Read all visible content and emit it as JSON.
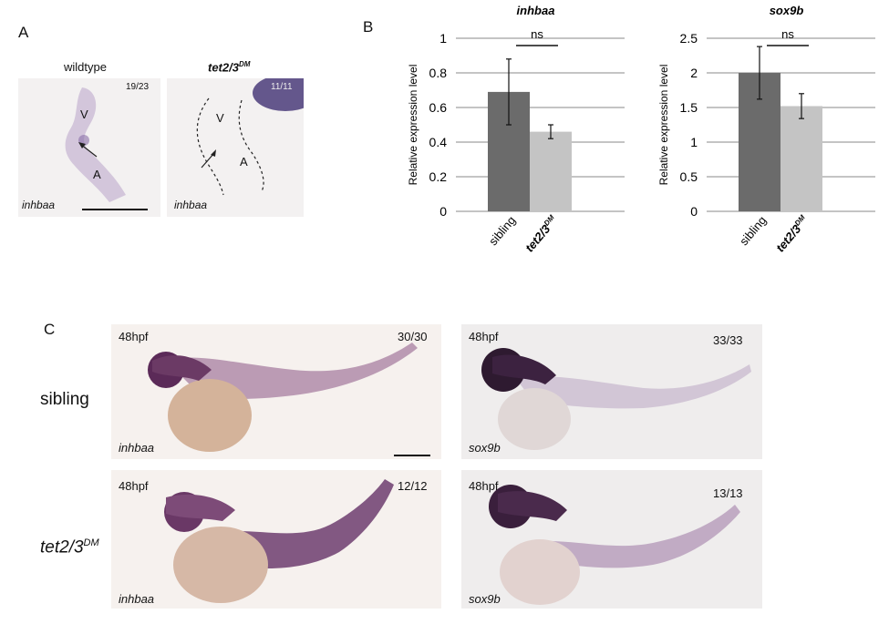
{
  "panel_a": {
    "letter": "A",
    "left_title": "wildtype",
    "right_title_main": "tet2/3",
    "right_title_sup": "DM",
    "left_count": "19/23",
    "right_count": "11/11",
    "left_gene": "inhbaa",
    "right_gene": "inhbaa",
    "label_v": "V",
    "label_a": "A"
  },
  "panel_b": {
    "letter": "B"
  },
  "panel_c": {
    "letter": "C",
    "row1_label": "sibling",
    "row2_label_main": "tet2/3",
    "row2_label_sup": "DM",
    "stage": "48hpf",
    "images": [
      {
        "count": "30/30",
        "gene": "inhbaa"
      },
      {
        "count": "33/33",
        "gene": "sox9b"
      },
      {
        "count": "12/12",
        "gene": "inhbaa"
      },
      {
        "count": "13/13",
        "gene": "sox9b"
      }
    ]
  },
  "chart_data": [
    {
      "type": "bar",
      "title": "inhbaa",
      "ylabel": "Relative expression level",
      "categories": [
        "sibling",
        "tet2/3DM"
      ],
      "values": [
        0.69,
        0.46
      ],
      "errors": [
        0.19,
        0.04
      ],
      "ylim": [
        0,
        1
      ],
      "yticks": [
        "0",
        "0.2",
        "0.4",
        "0.6",
        "0.8",
        "1"
      ],
      "significance": "ns",
      "colors": [
        "#6b6b6b",
        "#c4c4c4"
      ],
      "grid": true
    },
    {
      "type": "bar",
      "title": "sox9b",
      "ylabel": "Relative expression level",
      "categories": [
        "sibling",
        "tet2/3DM"
      ],
      "values": [
        2.0,
        1.52
      ],
      "errors": [
        0.38,
        0.18
      ],
      "ylim": [
        0,
        2.5
      ],
      "yticks": [
        "0",
        "0.5",
        "1",
        "1.5",
        "2",
        "2.5"
      ],
      "significance": "ns",
      "colors": [
        "#6b6b6b",
        "#c4c4c4"
      ],
      "grid": true
    }
  ]
}
